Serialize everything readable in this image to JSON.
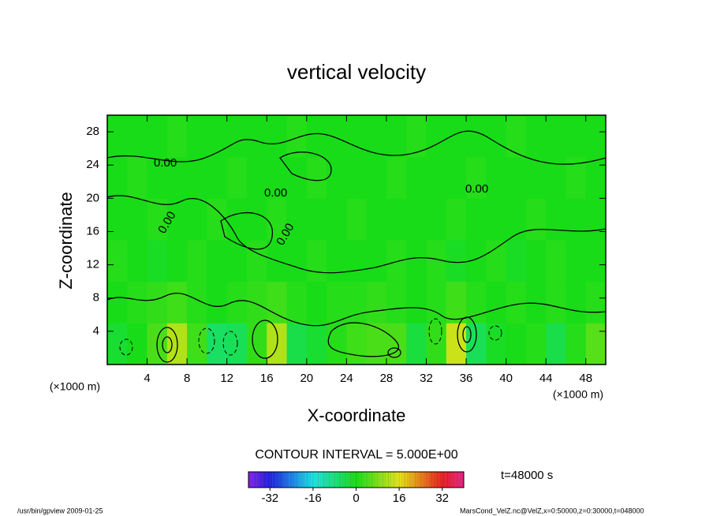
{
  "chart_data": {
    "type": "contour",
    "title": "vertical velocity",
    "xlabel": "X-coordinate",
    "ylabel": "Z-coordinate",
    "x_unit": "(×1000 m)",
    "y_unit": "(×1000 m)",
    "xlim": [
      0,
      50
    ],
    "ylim": [
      0,
      30
    ],
    "xticks": [
      4,
      8,
      12,
      16,
      20,
      24,
      28,
      32,
      36,
      40,
      44,
      48
    ],
    "yticks": [
      4,
      8,
      12,
      16,
      20,
      24,
      28
    ],
    "x": [
      1,
      3,
      5,
      7,
      9,
      11,
      13,
      15,
      17,
      19,
      21,
      23,
      25,
      27,
      29,
      31,
      33,
      35,
      37,
      39,
      41,
      43,
      45,
      47,
      49
    ],
    "y": [
      2.5,
      7.5,
      12.5,
      17.5,
      22.5,
      27.5
    ],
    "values": [
      [
        -2,
        0,
        4,
        12,
        3,
        -6,
        -5,
        2,
        12,
        -4,
        -2,
        1,
        3,
        4,
        4,
        -3,
        2,
        14,
        -5,
        -1,
        0,
        1,
        -4,
        1,
        5
      ],
      [
        0,
        1,
        2,
        3,
        1,
        0,
        1,
        2,
        3,
        1,
        0,
        1,
        1,
        2,
        1,
        0,
        1,
        3,
        1,
        0,
        1,
        0,
        1,
        0,
        1
      ],
      [
        1,
        0,
        -1,
        0,
        1,
        0,
        0,
        1,
        0,
        0,
        1,
        0,
        0,
        0,
        1,
        0,
        1,
        -1,
        0,
        1,
        -1,
        0,
        1,
        0,
        0
      ],
      [
        0,
        0,
        1,
        0,
        0,
        1,
        0,
        0,
        1,
        0,
        0,
        0,
        1,
        0,
        0,
        0,
        0,
        1,
        0,
        0,
        0,
        1,
        0,
        0,
        0
      ],
      [
        0,
        1,
        0,
        0,
        0,
        0,
        1,
        0,
        0,
        0,
        1,
        0,
        0,
        0,
        1,
        0,
        0,
        0,
        1,
        0,
        0,
        0,
        0,
        1,
        0
      ],
      [
        0,
        0,
        0,
        1,
        0,
        0,
        0,
        0,
        0,
        1,
        0,
        0,
        0,
        0,
        0,
        1,
        0,
        0,
        0,
        0,
        1,
        0,
        0,
        0,
        0
      ]
    ],
    "contour_labels": [
      "0.00",
      "0.00",
      "0.00",
      "0.00",
      "0.00"
    ],
    "contour_interval": "CONTOUR INTERVAL = 5.000E+00",
    "clim": [
      -40,
      40
    ],
    "colorbar_ticks": [
      -32,
      -16,
      0,
      16,
      32
    ],
    "time_label": "t=48000 s",
    "footer_left": "/usr/bin/gpview  2009-01-25",
    "footer_right": "MarsCond_VelZ.nc@VelZ,x=0:50000,z=0:30000,t=048000"
  }
}
